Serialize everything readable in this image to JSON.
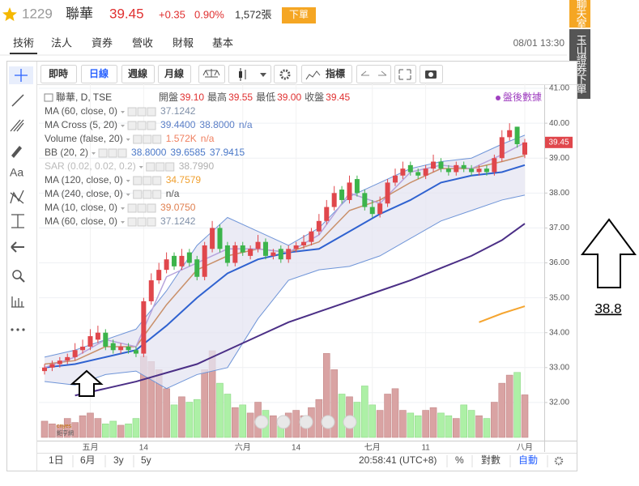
{
  "header": {
    "code": "1229",
    "name": "聯華",
    "price": "39.45",
    "change": "+0.35",
    "pct": "0.90%",
    "volume": "1,572張",
    "order": "下單"
  },
  "tabs": [
    "技術",
    "法人",
    "資券",
    "營收",
    "財報",
    "基本"
  ],
  "time": "08/01 13:30",
  "side": [
    "聊天室",
    "玉山證券下單"
  ],
  "toolbar": [
    "即時",
    "日線",
    "週線",
    "月線",
    "指標"
  ],
  "tools_text": "Aa",
  "logo": [
    "cnyes",
    "鉅亨網"
  ],
  "bottom": {
    "ranges": [
      "1日",
      "6月",
      "3y",
      "5y"
    ],
    "clock": "20:58:41 (UTC+8)",
    "options": [
      "%",
      "對數",
      "自動"
    ]
  },
  "annotation": "38.8",
  "chart_data": {
    "type": "candlestick",
    "title": "聯華, D, TSE",
    "readout": [
      {
        "label": "開盤",
        "value": "39.10"
      },
      {
        "label": "最高",
        "value": "39.55"
      },
      {
        "label": "最低",
        "value": "39.00"
      },
      {
        "label": "收盤",
        "value": "39.45"
      }
    ],
    "after_hours": "盤後數據",
    "last_label": "39.45",
    "indicators": [
      {
        "name": "MA (60, close, 0)",
        "values": [
          "37.1242"
        ],
        "color": "#8090a8"
      },
      {
        "name": "MA Cross (5, 20)",
        "values": [
          "39.4400",
          "38.8000",
          "n/a"
        ],
        "color": "#5b7fc7"
      },
      {
        "name": "Volume (false, 20)",
        "values": [
          "1.572K",
          "n/a"
        ],
        "color": "#f08060"
      },
      {
        "name": "BB (20, 2)",
        "values": [
          "38.8000",
          "39.6585",
          "37.9415"
        ],
        "color": "#4a78c8"
      },
      {
        "name": "SAR (0.02, 0.02, 0.2)",
        "values": [
          "38.7990"
        ],
        "color": "#b0b0b0",
        "muted": true
      },
      {
        "name": "MA (120, close, 0)",
        "values": [
          "34.7579"
        ],
        "color": "#f0a030"
      },
      {
        "name": "MA (240, close, 0)",
        "values": [
          "n/a"
        ],
        "color": "#555555"
      },
      {
        "name": "MA (10, close, 0)",
        "values": [
          "39.0750"
        ],
        "color": "#e08050"
      },
      {
        "name": "MA (60, close, 0)",
        "values": [
          "37.1242"
        ],
        "color": "#8090a8"
      }
    ],
    "categories": [
      null,
      null,
      null,
      null,
      null,
      null,
      "五月",
      null,
      null,
      null,
      null,
      null,
      null,
      "14",
      null,
      null,
      null,
      null,
      null,
      null,
      null,
      null,
      null,
      null,
      null,
      null,
      "六月",
      null,
      null,
      null,
      null,
      null,
      null,
      "14",
      null,
      null,
      null,
      null,
      null,
      null,
      null,
      null,
      null,
      "七月",
      null,
      null,
      null,
      null,
      null,
      null,
      "11",
      null,
      null,
      null,
      null,
      null,
      null,
      null,
      null,
      null,
      null,
      null,
      null,
      "八月"
    ],
    "open": [
      32.9,
      33.0,
      33.1,
      33.2,
      33.3,
      33.5,
      33.6,
      33.8,
      34.0,
      33.7,
      33.5,
      33.6,
      33.5,
      33.4,
      34.9,
      35.5,
      35.8,
      36.2,
      35.9,
      36.3,
      36.1,
      35.6,
      36.4,
      37.0,
      36.5,
      36.0,
      36.5,
      36.2,
      36.4,
      36.6,
      36.2,
      36.4,
      36.1,
      36.4,
      36.5,
      36.6,
      36.9,
      37.2,
      37.6,
      38.1,
      37.8,
      38.4,
      38.0,
      37.6,
      37.4,
      37.7,
      38.3,
      38.5,
      38.8,
      38.6,
      38.5,
      38.7,
      38.9,
      38.7,
      38.6,
      38.8,
      38.7,
      38.6,
      38.7,
      38.6,
      39.0,
      39.6,
      39.9,
      39.1
    ],
    "high": [
      33.1,
      33.2,
      33.3,
      33.4,
      33.7,
      33.8,
      34.1,
      34.2,
      34.1,
      33.8,
      33.7,
      33.7,
      33.6,
      35.0,
      35.7,
      36.0,
      36.3,
      36.3,
      36.4,
      36.4,
      36.2,
      36.6,
      37.2,
      37.1,
      36.6,
      36.6,
      36.6,
      36.5,
      36.8,
      36.7,
      36.4,
      36.5,
      36.5,
      36.6,
      36.8,
      37.0,
      37.4,
      37.8,
      38.2,
      38.2,
      38.5,
      38.5,
      38.1,
      37.8,
      37.9,
      38.4,
      38.7,
      38.9,
      38.9,
      38.7,
      38.8,
      39.1,
      39.0,
      38.8,
      38.9,
      38.9,
      38.8,
      38.8,
      38.8,
      39.1,
      39.8,
      40.0,
      39.9,
      39.55
    ],
    "low": [
      32.8,
      32.9,
      33.0,
      33.1,
      33.2,
      33.4,
      33.5,
      33.7,
      33.5,
      33.4,
      33.4,
      33.4,
      33.3,
      33.3,
      34.8,
      35.4,
      35.7,
      35.8,
      35.8,
      35.9,
      35.5,
      35.5,
      36.3,
      36.3,
      35.9,
      35.9,
      36.2,
      36.1,
      36.3,
      36.1,
      36.1,
      36.0,
      36.0,
      36.3,
      36.4,
      36.5,
      36.8,
      37.1,
      37.5,
      37.7,
      37.7,
      37.9,
      37.5,
      37.3,
      37.3,
      37.6,
      38.2,
      38.4,
      38.5,
      38.4,
      38.4,
      38.6,
      38.6,
      38.5,
      38.5,
      38.6,
      38.5,
      38.5,
      38.5,
      38.5,
      38.9,
      39.5,
      39.3,
      39.0
    ],
    "close": [
      33.0,
      33.1,
      33.2,
      33.3,
      33.5,
      33.6,
      33.9,
      34.0,
      33.6,
      33.5,
      33.6,
      33.5,
      33.4,
      34.9,
      35.5,
      35.8,
      36.1,
      35.9,
      36.2,
      36.0,
      35.6,
      36.5,
      37.0,
      36.4,
      36.0,
      36.5,
      36.3,
      36.4,
      36.6,
      36.2,
      36.3,
      36.1,
      36.4,
      36.5,
      36.6,
      36.9,
      37.2,
      37.6,
      38.0,
      37.8,
      38.3,
      38.0,
      37.6,
      37.4,
      37.7,
      38.3,
      38.5,
      38.7,
      38.6,
      38.5,
      38.7,
      38.9,
      38.7,
      38.6,
      38.8,
      38.7,
      38.6,
      38.7,
      38.6,
      39.0,
      39.6,
      39.8,
      39.4,
      39.45
    ],
    "volume": [
      600,
      500,
      450,
      700,
      550,
      800,
      900,
      700,
      500,
      600,
      450,
      500,
      700,
      3000,
      2800,
      2500,
      1800,
      1200,
      1500,
      1300,
      1400,
      2500,
      3200,
      2000,
      1600,
      1100,
      1200,
      900,
      1300,
      1000,
      800,
      700,
      900,
      1000,
      800,
      1100,
      1400,
      3100,
      2500,
      1600,
      1500,
      1300,
      1900,
      1200,
      1000,
      1600,
      1800,
      1000,
      900,
      800,
      1000,
      1100,
      900,
      800,
      700,
      1200,
      1000,
      800,
      700,
      1300,
      2000,
      2300,
      2400,
      1572
    ],
    "up_color": "#e0474c",
    "down_color": "#3cb44b",
    "volume_up_color": "#d9a3a3",
    "volume_down_color": "#adf0a6",
    "band": {
      "fill": "#e4e4f2",
      "color": "#6f95d8",
      "x": [
        0,
        4,
        8,
        12,
        16,
        20,
        24,
        28,
        32,
        36,
        40,
        44,
        48,
        52,
        56,
        60,
        63
      ],
      "upper": [
        33.3,
        33.5,
        33.8,
        34.1,
        35.2,
        36.5,
        37.3,
        36.9,
        36.5,
        37.0,
        37.9,
        38.3,
        38.7,
        38.9,
        39.0,
        39.4,
        39.6585
      ],
      "lower": [
        32.6,
        32.5,
        32.8,
        32.9,
        32.4,
        32.8,
        33.0,
        34.4,
        35.5,
        35.8,
        35.9,
        36.2,
        36.7,
        37.2,
        37.5,
        37.8,
        37.9415
      ]
    },
    "lines": [
      {
        "color": "#4b2f86",
        "width": 2,
        "x": [
          4,
          8,
          12,
          16,
          20,
          24,
          28,
          32,
          36,
          40,
          44,
          48,
          52,
          56,
          60,
          63
        ],
        "values": [
          32.2,
          32.4,
          32.6,
          32.85,
          33.1,
          33.5,
          33.9,
          34.3,
          34.6,
          34.9,
          35.2,
          35.5,
          35.85,
          36.2,
          36.65,
          37.1242
        ]
      },
      {
        "color": "#2f62d0",
        "width": 2,
        "x": [
          0,
          4,
          8,
          12,
          16,
          20,
          24,
          28,
          32,
          36,
          40,
          44,
          48,
          52,
          56,
          60,
          63
        ],
        "values": [
          33.0,
          33.1,
          33.3,
          33.5,
          34.2,
          35.0,
          35.7,
          36.1,
          36.3,
          36.4,
          36.9,
          37.4,
          37.8,
          38.3,
          38.5,
          38.6,
          38.8
        ]
      },
      {
        "color": "#c9906a",
        "width": 1.5,
        "x": [
          0,
          4,
          8,
          12,
          16,
          20,
          24,
          28,
          32,
          36,
          40,
          44,
          48,
          52,
          56,
          60,
          63
        ],
        "values": [
          33.1,
          33.2,
          33.6,
          33.6,
          34.8,
          35.8,
          36.2,
          36.4,
          36.3,
          36.6,
          37.5,
          37.8,
          38.3,
          38.7,
          38.7,
          38.9,
          39.075
        ]
      },
      {
        "color": "#b7a4dc",
        "width": 1.5,
        "x": [
          0,
          4,
          8,
          12,
          16,
          20,
          24,
          28,
          32,
          36,
          40,
          44,
          48,
          52,
          56,
          60,
          63
        ],
        "values": [
          33.0,
          33.3,
          33.8,
          33.6,
          35.6,
          36.0,
          36.4,
          36.4,
          36.3,
          36.8,
          38.0,
          37.7,
          38.6,
          38.8,
          38.7,
          39.1,
          39.44
        ]
      },
      {
        "color": "#f5a530",
        "width": 2,
        "x": [
          57,
          60,
          63
        ],
        "values": [
          34.3,
          34.55,
          34.7579
        ]
      }
    ],
    "ylim": [
      31.0,
      41.14
    ],
    "yticks": [
      {
        "value": 32,
        "label": "32.00"
      },
      {
        "value": 33,
        "label": "33.00"
      },
      {
        "value": 34,
        "label": "34.00"
      },
      {
        "value": 35,
        "label": "35.00"
      },
      {
        "value": 36,
        "label": "36.00"
      },
      {
        "value": 37,
        "label": "37.00"
      },
      {
        "value": 38,
        "label": "38.00"
      },
      {
        "value": 39,
        "label": "39.00"
      },
      {
        "value": 40,
        "label": "40.00"
      },
      {
        "value": 41,
        "label": "41.00"
      }
    ]
  }
}
